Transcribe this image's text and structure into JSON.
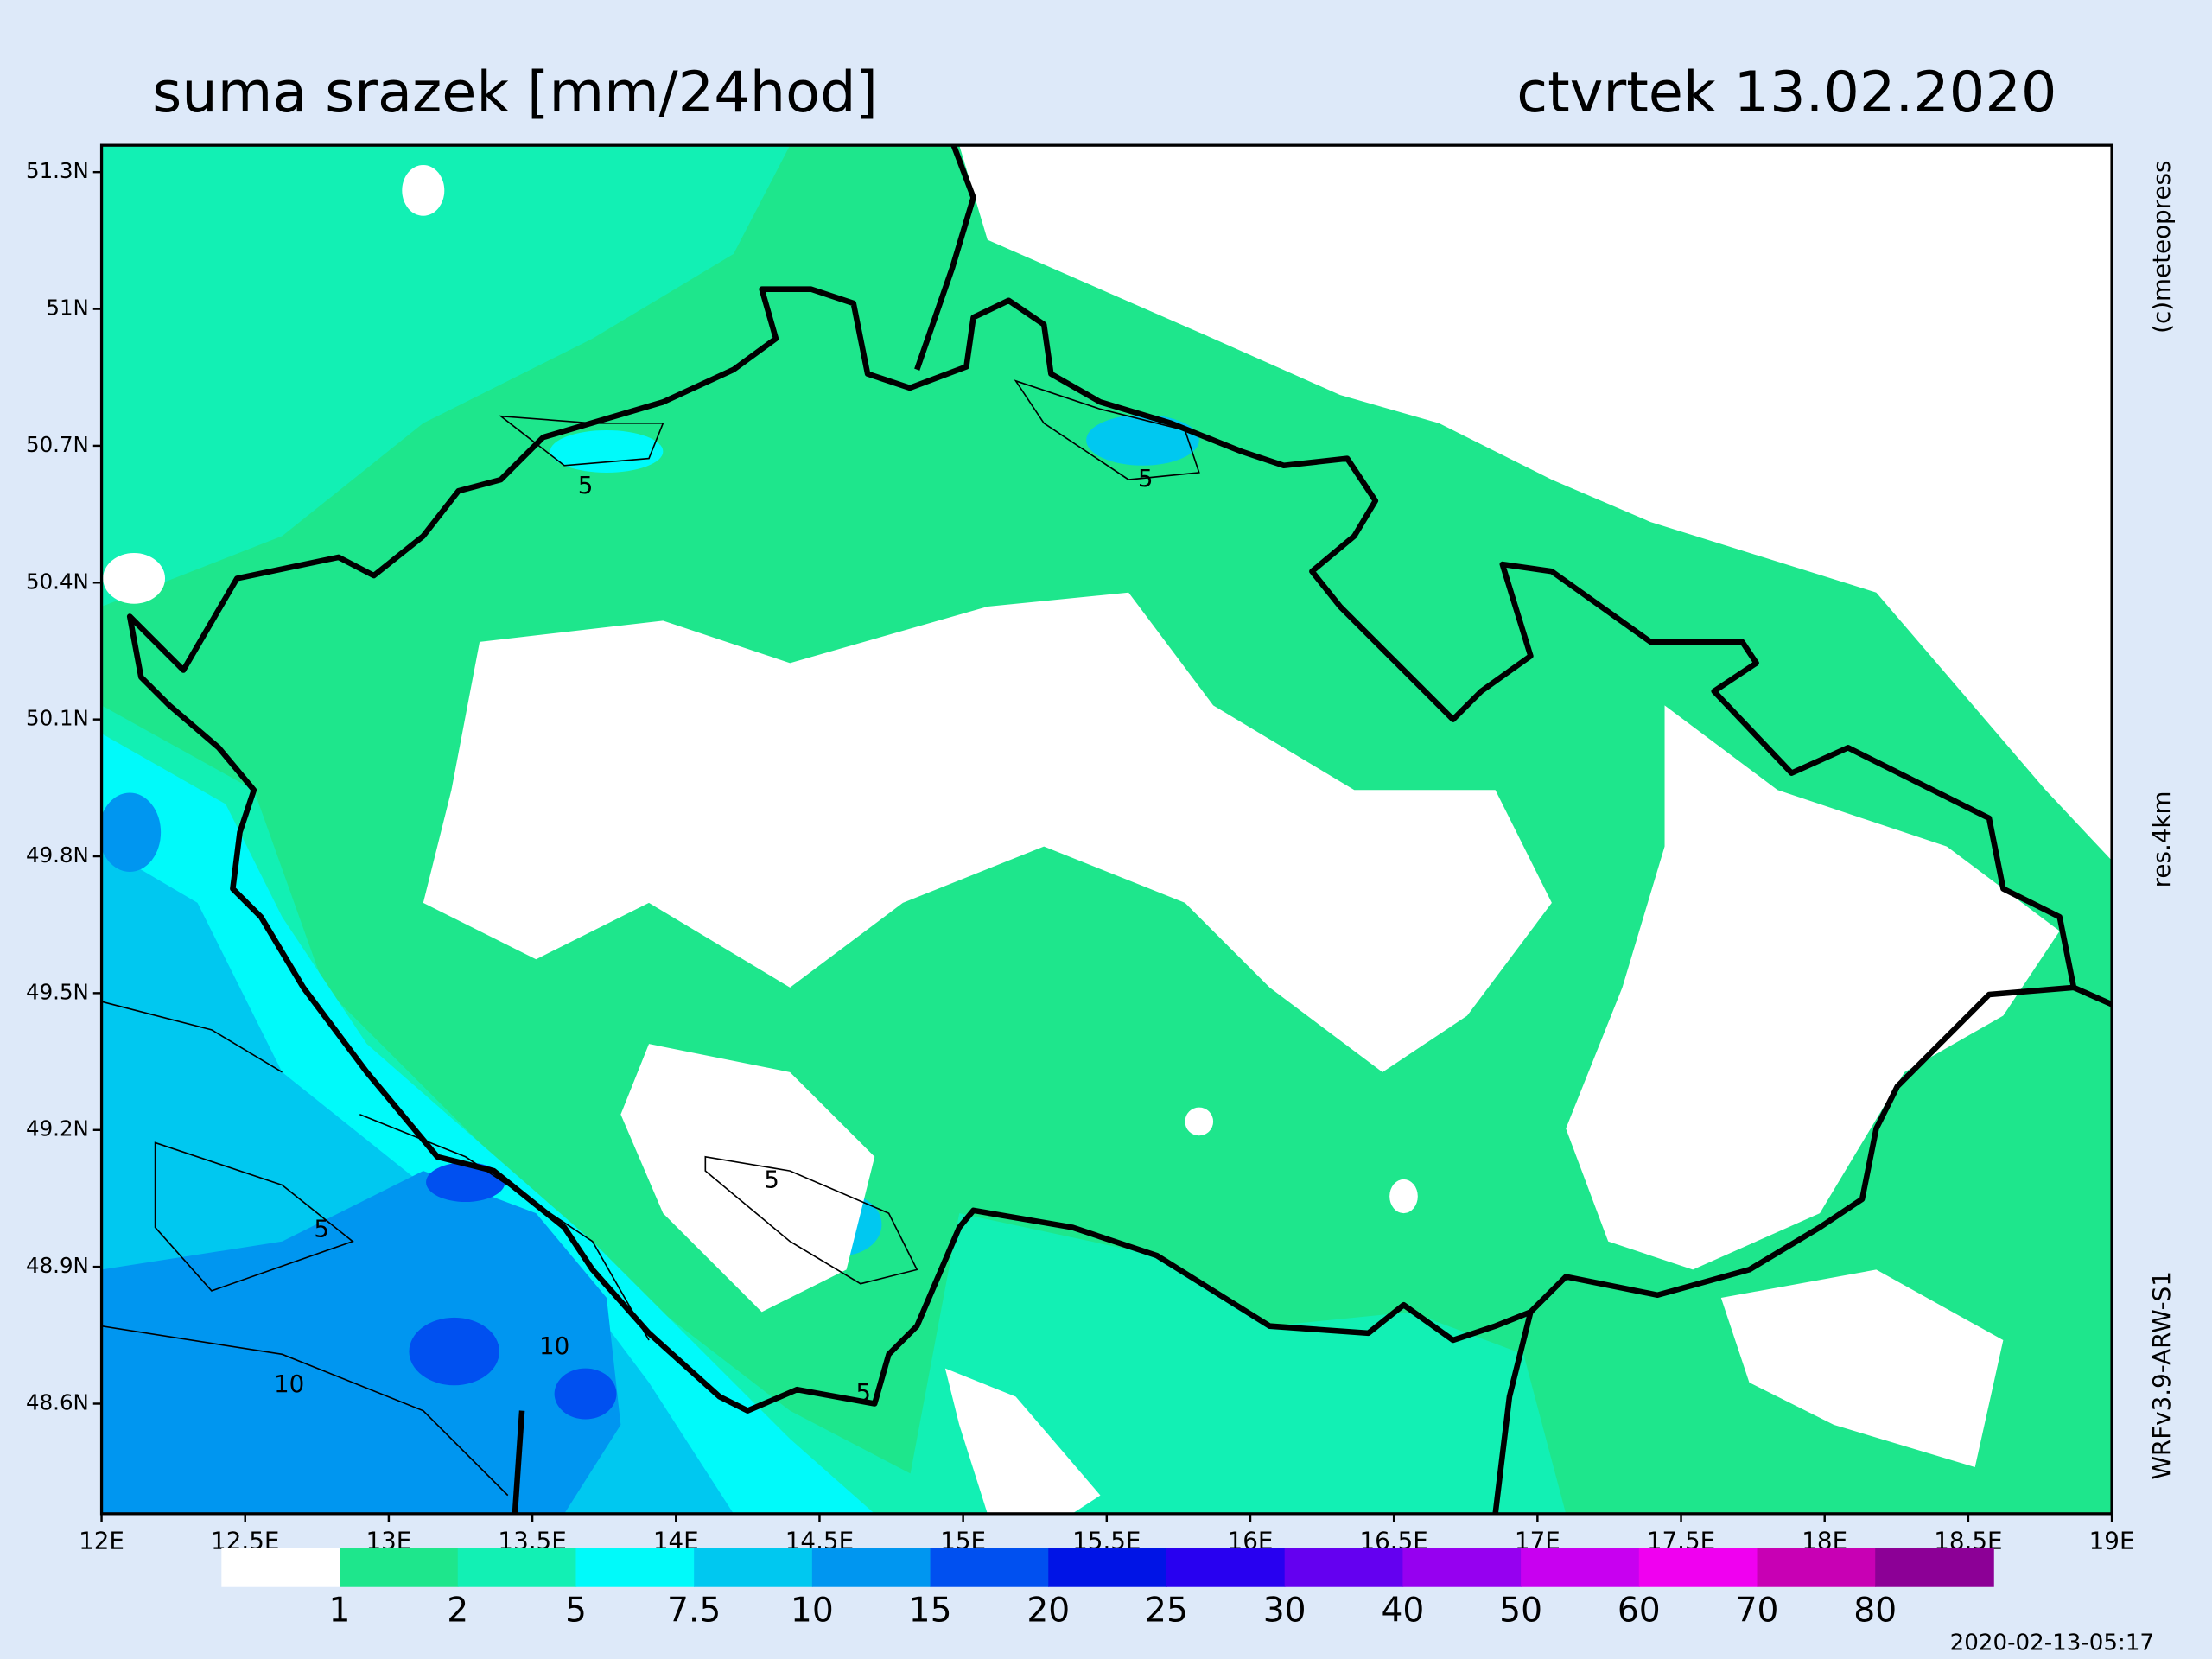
{
  "header": {
    "title": "suma srazek [mm/24hod]",
    "date": "ctvrtek 13.02.2020"
  },
  "map": {
    "lat_labels": [
      "51.3N",
      "51N",
      "50.7N",
      "50.4N",
      "50.1N",
      "49.8N",
      "49.5N",
      "49.2N",
      "48.9N",
      "48.6N"
    ],
    "lon_labels": [
      "12E",
      "12.5E",
      "13E",
      "13.5E",
      "14E",
      "14.5E",
      "15E",
      "15.5E",
      "16E",
      "16.5E",
      "17E",
      "17.5E",
      "18E",
      "18.5E",
      "19E"
    ],
    "contour_labels": [
      "5",
      "5",
      "5",
      "5",
      "5",
      "10",
      "10"
    ]
  },
  "side": {
    "copyright": "(c)meteopress",
    "resolution": "res.4km",
    "model": "WRFv3.9-ARW-S1"
  },
  "legend": {
    "colors": [
      "#ffffff",
      "#1ee68c",
      "#12f0b4",
      "#00fafa",
      "#00c8f0",
      "#0096f0",
      "#0050f0",
      "#0014e6",
      "#2800f0",
      "#6400f0",
      "#9600f0",
      "#c800f0",
      "#f000f0",
      "#c800b4",
      "#8c0096"
    ],
    "labels": [
      "1",
      "2",
      "5",
      "7.5",
      "10",
      "15",
      "20",
      "25",
      "30",
      "40",
      "50",
      "60",
      "70",
      "80"
    ]
  },
  "timestamp": "2020-02-13-05:17"
}
